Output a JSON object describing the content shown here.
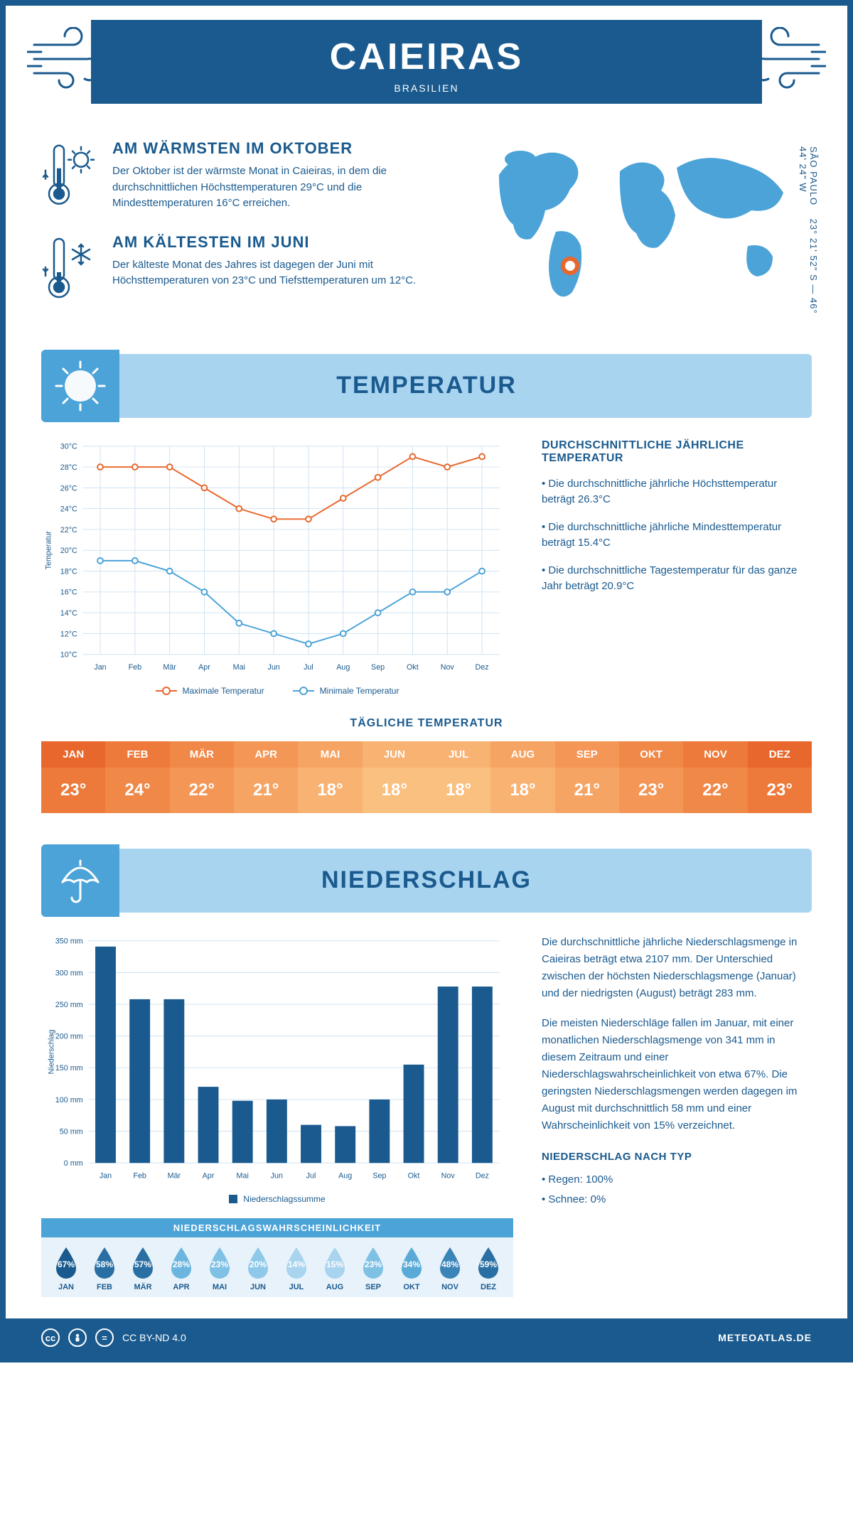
{
  "header": {
    "title": "CAIEIRAS",
    "subtitle": "BRASILIEN"
  },
  "intro": {
    "warm": {
      "heading": "AM WÄRMSTEN IM OKTOBER",
      "text": "Der Oktober ist der wärmste Monat in Caieiras, in dem die durchschnittlichen Höchsttemperaturen 29°C und die Mindesttemperaturen 16°C erreichen."
    },
    "cold": {
      "heading": "AM KÄLTESTEN IM JUNI",
      "text": "Der kälteste Monat des Jahres ist dagegen der Juni mit Höchsttemperaturen von 23°C und Tiefsttemperaturen um 12°C."
    },
    "coords": "23° 21' 52\" S — 46° 44' 24\" W",
    "region": "SÃO PAULO"
  },
  "colors": {
    "primary": "#1a5a8e",
    "lightBlue": "#a8d4f0",
    "midBlue": "#4ba3d8",
    "maxLine": "#e8672c",
    "minLine": "#4ba3d8",
    "grid": "#cfe3f2",
    "barFill": "#1a5a8e"
  },
  "months": [
    "Jan",
    "Feb",
    "Mär",
    "Apr",
    "Mai",
    "Jun",
    "Jul",
    "Aug",
    "Sep",
    "Okt",
    "Nov",
    "Dez"
  ],
  "monthsUpper": [
    "JAN",
    "FEB",
    "MÄR",
    "APR",
    "MAI",
    "JUN",
    "JUL",
    "AUG",
    "SEP",
    "OKT",
    "NOV",
    "DEZ"
  ],
  "tempSection": {
    "banner": "TEMPERATUR",
    "chart": {
      "type": "line",
      "ylabel": "Temperatur",
      "ylim": [
        10,
        30
      ],
      "ytick_step": 2,
      "ySuffix": "°C",
      "maxSeries": [
        28,
        28,
        28,
        26,
        24,
        23,
        23,
        25,
        27,
        29,
        28,
        29
      ],
      "minSeries": [
        19,
        19,
        18,
        16,
        13,
        12,
        11,
        12,
        14,
        16,
        16,
        18
      ],
      "maxLabel": "Maximale Temperatur",
      "minLabel": "Minimale Temperatur",
      "maxColor": "#e8672c",
      "minColor": "#4ba3d8",
      "gridColor": "#cfe3f2",
      "markerRadius": 4,
      "lineWidth": 2
    },
    "info": {
      "heading": "DURCHSCHNITTLICHE JÄHRLICHE TEMPERATUR",
      "b1": "• Die durchschnittliche jährliche Höchsttemperatur beträgt 26.3°C",
      "b2": "• Die durchschnittliche jährliche Mindesttemperatur beträgt 15.4°C",
      "b3": "• Die durchschnittliche Tagestemperatur für das ganze Jahr beträgt 20.9°C"
    },
    "dailyTitle": "TÄGLICHE TEMPERATUR",
    "dailyValues": [
      "23°",
      "24°",
      "22°",
      "21°",
      "18°",
      "18°",
      "18°",
      "18°",
      "21°",
      "23°",
      "22°",
      "23°"
    ],
    "dailyHeadColors": [
      "#e8672c",
      "#ed7a3a",
      "#f08848",
      "#f39656",
      "#f6a464",
      "#f8b272",
      "#f8b272",
      "#f6a464",
      "#f39656",
      "#f08848",
      "#ed7a3a",
      "#e8672c"
    ],
    "dailyValColors": [
      "#ed7a3a",
      "#f08848",
      "#f39656",
      "#f6a464",
      "#f8b272",
      "#fac080",
      "#fac080",
      "#f8b272",
      "#f6a464",
      "#f39656",
      "#f08848",
      "#ed7a3a"
    ]
  },
  "precipSection": {
    "banner": "NIEDERSCHLAG",
    "chart": {
      "type": "bar",
      "ylabel": "Niederschlag",
      "ylim": [
        0,
        350
      ],
      "ytick_step": 50,
      "ySuffix": " mm",
      "values": [
        341,
        258,
        258,
        120,
        98,
        100,
        60,
        58,
        100,
        155,
        278,
        278
      ],
      "legendLabel": "Niederschlagssumme",
      "barColor": "#1a5a8e",
      "gridColor": "#cfe3f2",
      "barWidthRatio": 0.6
    },
    "text": {
      "p1": "Die durchschnittliche jährliche Niederschlagsmenge in Caieiras beträgt etwa 2107 mm. Der Unterschied zwischen der höchsten Niederschlagsmenge (Januar) und der niedrigsten (August) beträgt 283 mm.",
      "p2": "Die meisten Niederschläge fallen im Januar, mit einer monatlichen Niederschlagsmenge von 341 mm in diesem Zeitraum und einer Niederschlagswahrscheinlichkeit von etwa 67%. Die geringsten Niederschlagsmengen werden dagegen im August mit durchschnittlich 58 mm und einer Wahrscheinlichkeit von 15% verzeichnet.",
      "typeHeading": "NIEDERSCHLAG NACH TYP",
      "type1": "• Regen: 100%",
      "type2": "• Schnee: 0%"
    },
    "probTitle": "NIEDERSCHLAGSWAHRSCHEINLICHKEIT",
    "probValues": [
      67,
      58,
      57,
      28,
      23,
      20,
      14,
      15,
      23,
      34,
      48,
      59
    ],
    "probColors": [
      "#1a5a8e",
      "#2a6fa3",
      "#2a6fa3",
      "#6bb5df",
      "#7fc0e5",
      "#8fc9ea",
      "#a8d4f0",
      "#a8d4f0",
      "#7fc0e5",
      "#5aaad8",
      "#3a84b8",
      "#2a6fa3"
    ]
  },
  "footer": {
    "license": "CC BY-ND 4.0",
    "site": "METEOATLAS.DE"
  }
}
